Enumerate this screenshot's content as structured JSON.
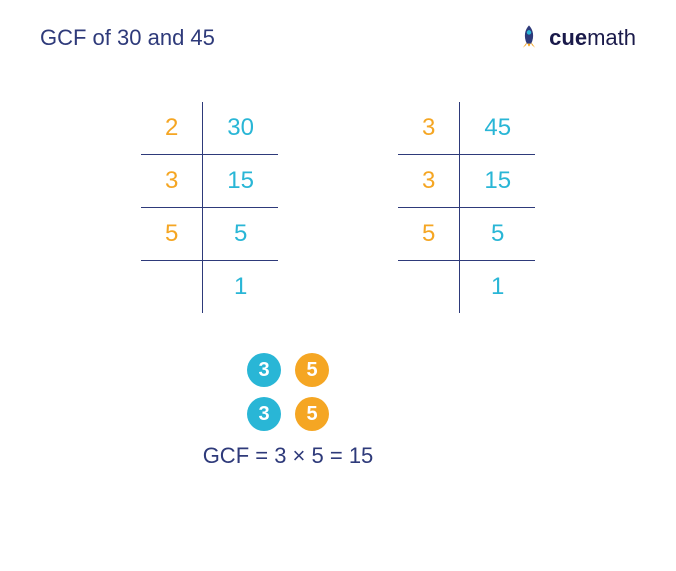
{
  "title": "GCF of 30 and 45",
  "title_color": "#2e3a7a",
  "logo_text_a": "cue",
  "logo_text_b": "math",
  "orange": "#f5a623",
  "cyan": "#29b6d6",
  "navy": "#2e3a7a",
  "table_a": {
    "rows": [
      {
        "factor": "2",
        "value": "30"
      },
      {
        "factor": "3",
        "value": "15"
      },
      {
        "factor": "5",
        "value": "5"
      },
      {
        "factor": "",
        "value": "1"
      }
    ]
  },
  "table_b": {
    "rows": [
      {
        "factor": "3",
        "value": "45"
      },
      {
        "factor": "3",
        "value": "15"
      },
      {
        "factor": "5",
        "value": "5"
      },
      {
        "factor": "",
        "value": "1"
      }
    ]
  },
  "common": {
    "row1": [
      {
        "n": "3",
        "color": "#29b6d6"
      },
      {
        "n": "5",
        "color": "#f5a623"
      }
    ],
    "row2": [
      {
        "n": "3",
        "color": "#29b6d6"
      },
      {
        "n": "5",
        "color": "#f5a623"
      }
    ]
  },
  "result": "GCF = 3 × 5 = 15"
}
